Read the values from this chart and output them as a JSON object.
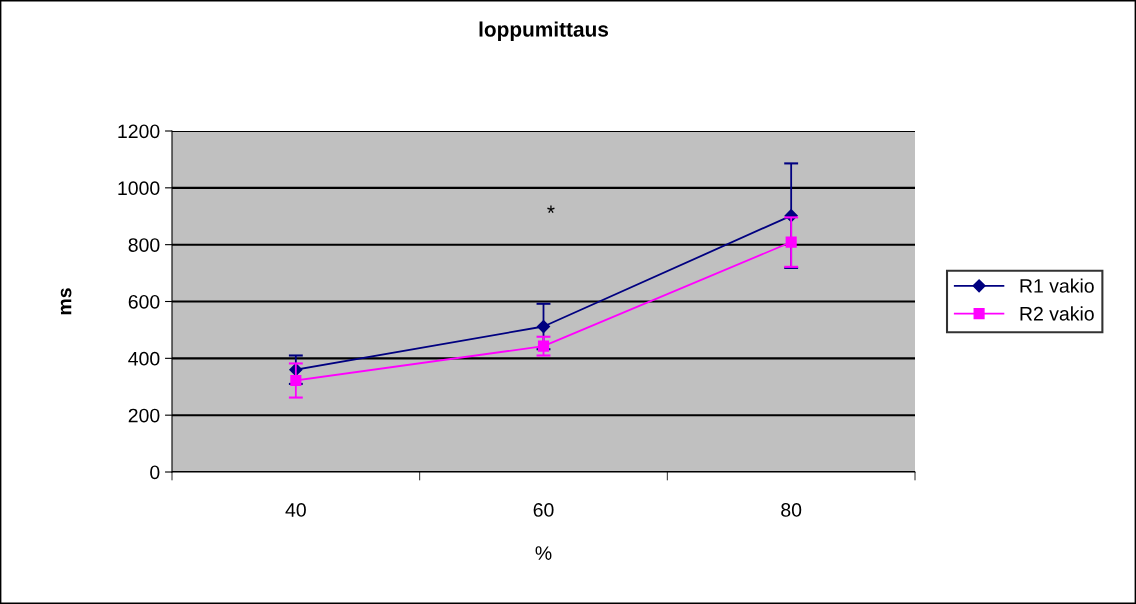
{
  "chart_data": {
    "type": "line",
    "title": "loppumittaus",
    "xlabel": "%",
    "ylabel": "ms",
    "categories": [
      "40",
      "60",
      "80"
    ],
    "series": [
      {
        "name": "R1 vakio",
        "color": "#000080",
        "marker": "diamond",
        "values": [
          360,
          512,
          902
        ],
        "errors": [
          50,
          80,
          184
        ]
      },
      {
        "name": "R2 vakio",
        "color": "#ff00ff",
        "marker": "square",
        "values": [
          322,
          443,
          809
        ],
        "errors": [
          60,
          33,
          87
        ]
      }
    ],
    "annotations": [
      "*"
    ],
    "ylim": [
      0,
      1200
    ],
    "yticks": [
      0,
      200,
      400,
      600,
      800,
      1000,
      1200
    ],
    "grid": "y",
    "legend": "right"
  }
}
